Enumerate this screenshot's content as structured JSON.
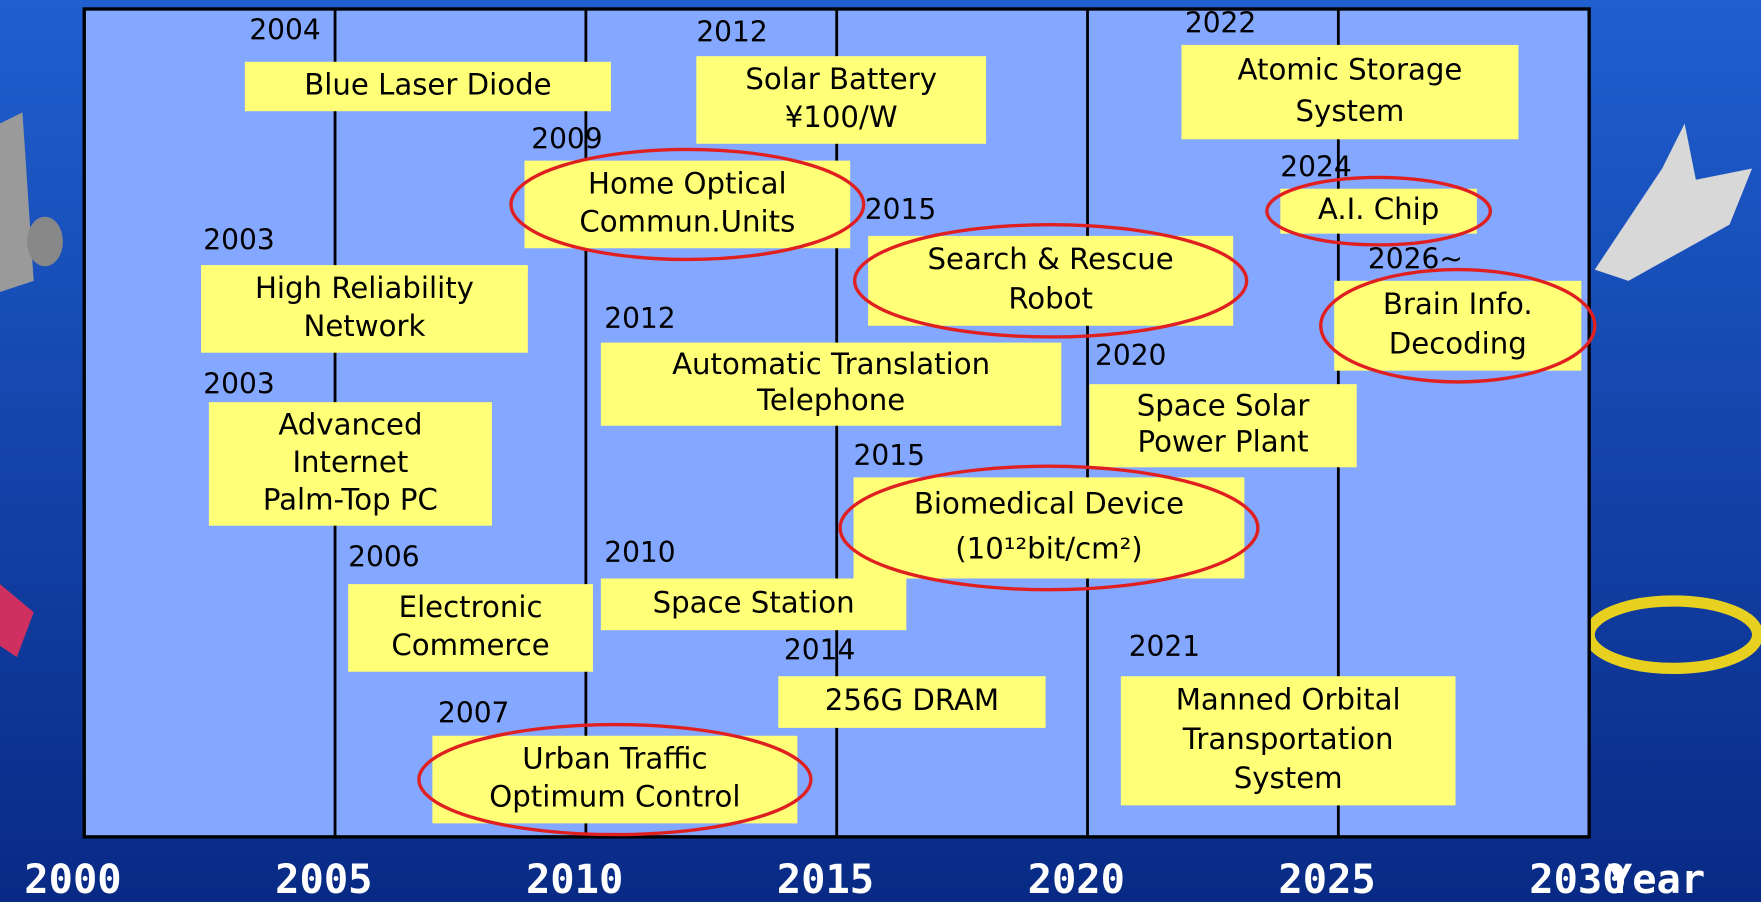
{
  "axis": {
    "range": [
      2000,
      2030
    ],
    "ticks": [
      2000,
      2005,
      2010,
      2015,
      2020,
      2025,
      2030
    ],
    "unit_label": "Year"
  },
  "items": [
    {
      "year": "2004",
      "lines": [
        "Blue Laser Diode"
      ],
      "highlighted": false
    },
    {
      "year": "2012",
      "lines": [
        "Solar Battery",
        "¥100/W"
      ],
      "highlighted": false
    },
    {
      "year": "2022",
      "lines": [
        "Atomic Storage",
        "System"
      ],
      "highlighted": false
    },
    {
      "year": "2009",
      "lines": [
        "Home Optical",
        "Commun.Units"
      ],
      "highlighted": true
    },
    {
      "year": "2024",
      "lines": [
        "A.I. Chip"
      ],
      "highlighted": true
    },
    {
      "year": "2015",
      "lines": [
        "Search & Rescue",
        "Robot"
      ],
      "highlighted": true
    },
    {
      "year": "2003",
      "lines": [
        "High Reliability",
        "Network"
      ],
      "highlighted": false
    },
    {
      "year": "2026~",
      "lines": [
        "Brain Info.",
        "Decoding"
      ],
      "highlighted": true
    },
    {
      "year": "2012",
      "lines": [
        "Automatic Translation",
        "Telephone"
      ],
      "highlighted": false
    },
    {
      "year": "2020",
      "lines": [
        "Space Solar",
        "Power Plant"
      ],
      "highlighted": false
    },
    {
      "year": "2003",
      "lines": [
        "Advanced",
        "Internet",
        "Palm-Top PC"
      ],
      "highlighted": false
    },
    {
      "year": "2015",
      "lines": [
        "Biomedical Device",
        "(10¹²bit/cm²)"
      ],
      "highlighted": true
    },
    {
      "year": "2006",
      "lines": [
        "Electronic",
        "Commerce"
      ],
      "highlighted": false
    },
    {
      "year": "2010",
      "lines": [
        "Space Station"
      ],
      "highlighted": false
    },
    {
      "year": "2014",
      "lines": [
        "256G DRAM"
      ],
      "highlighted": false
    },
    {
      "year": "2021",
      "lines": [
        "Manned Orbital",
        "Transportation",
        "System"
      ],
      "highlighted": false
    },
    {
      "year": "2007",
      "lines": [
        "Urban Traffic",
        "Optimum Control"
      ],
      "highlighted": true
    }
  ]
}
